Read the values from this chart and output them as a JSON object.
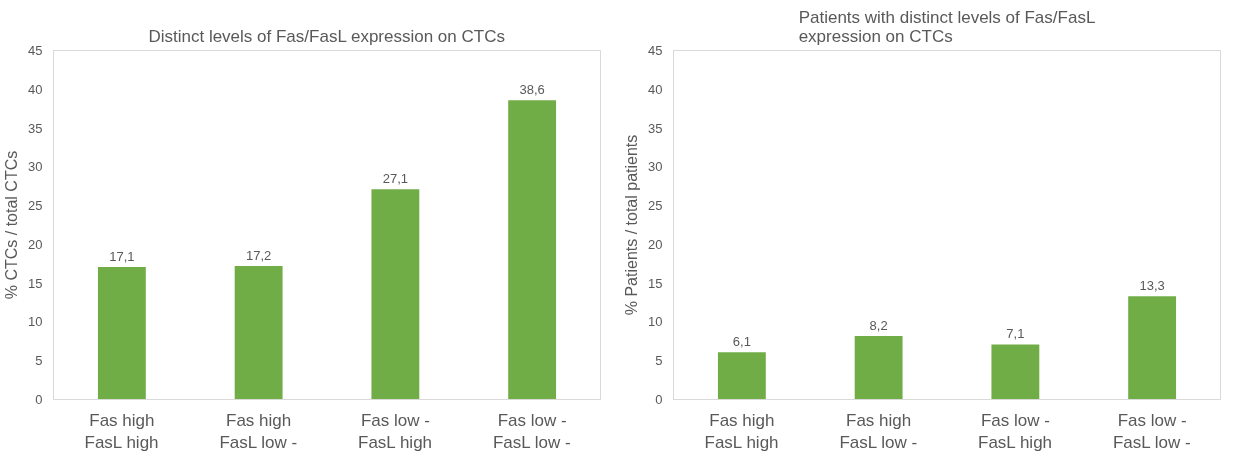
{
  "chart_data": [
    {
      "type": "bar",
      "title": "Distinct levels of Fas/FasL expression on CTCs",
      "ylabel": "% CTCs / total CTCs",
      "categories": [
        "Fas high\nFasL high",
        "Fas high\nFasL low -",
        "Fas low -\nFasL high",
        "Fas low -\nFasL low -"
      ],
      "values": [
        17.1,
        17.2,
        27.1,
        38.6
      ],
      "value_labels": [
        "17,1",
        "17,2",
        "27,1",
        "38,6"
      ],
      "color": "#70ad47",
      "ylim": [
        0,
        45
      ],
      "yticks": [
        0,
        5,
        10,
        15,
        20,
        25,
        30,
        35,
        40,
        45
      ],
      "grid": false
    },
    {
      "type": "bar",
      "title": "Patients with distinct levels of Fas/FasL\nexpression on CTCs",
      "ylabel": "% Patients / total patients",
      "categories": [
        "Fas high\nFasL high",
        "Fas high\nFasL low -",
        "Fas low -\nFasL high",
        "Fas low -\nFasL low -"
      ],
      "values": [
        6.1,
        8.2,
        7.1,
        13.3
      ],
      "value_labels": [
        "6,1",
        "8,2",
        "7,1",
        "13,3"
      ],
      "color": "#70ad47",
      "ylim": [
        0,
        45
      ],
      "yticks": [
        0,
        5,
        10,
        15,
        20,
        25,
        30,
        35,
        40,
        45
      ],
      "grid": false
    }
  ]
}
